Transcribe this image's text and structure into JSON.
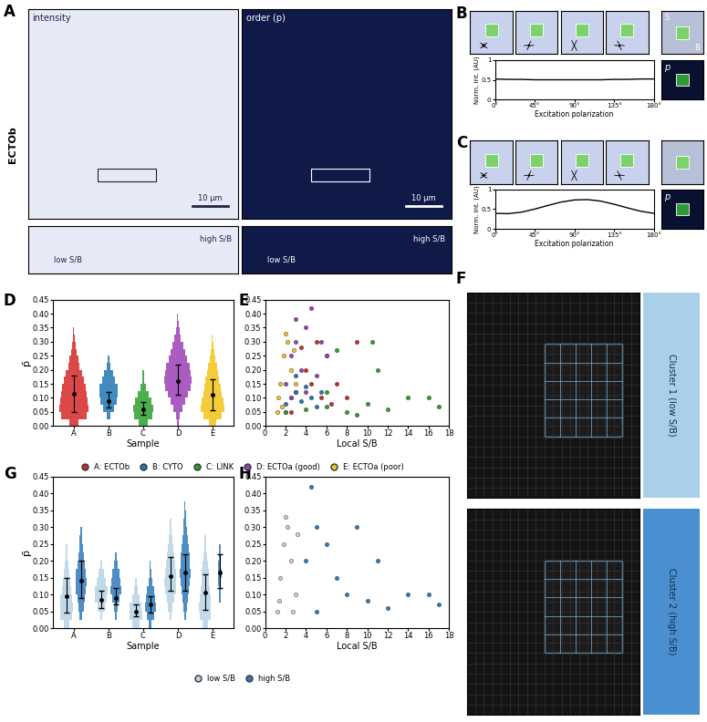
{
  "images": {
    "A": {
      "panel_label": "A",
      "row_label": "ECTOb",
      "intensity_title": "intensity",
      "order_title": "order (p)",
      "scale_bar": "10 µm",
      "inset_labels": [
        "low S/B",
        "high S/B"
      ]
    },
    "B": {
      "panel_label": "B",
      "tile_labels": [
        "S",
        "B"
      ],
      "order_label": "p"
    },
    "C": {
      "panel_label": "C",
      "order_label": "p"
    },
    "F": {
      "panel_label": "F",
      "clusters": [
        "Cluster 1 (low S/B)",
        "Cluster 2 (high S/B)"
      ]
    }
  },
  "chart_data": [
    {
      "type": "line",
      "x": [
        0,
        15,
        30,
        45,
        60,
        75,
        90,
        105,
        120,
        135,
        150,
        165,
        180
      ],
      "values": [
        0.52,
        0.51,
        0.51,
        0.5,
        0.5,
        0.5,
        0.5,
        0.5,
        0.5,
        0.51,
        0.51,
        0.52,
        0.52
      ],
      "color": "#000000",
      "xlabel": "Excitation polarization",
      "ylabel": "Norm. int. (AU)",
      "xlim": [
        0,
        180
      ],
      "xticks": [
        {
          "value": 0,
          "label": "0°"
        },
        {
          "value": 45,
          "label": "45°"
        },
        {
          "value": 90,
          "label": "90°"
        },
        {
          "value": 135,
          "label": "135°"
        },
        {
          "value": 180,
          "label": "180°"
        }
      ],
      "ylim": [
        0,
        1
      ],
      "yticks": [
        0,
        0.5,
        1
      ]
    },
    {
      "type": "line",
      "x": [
        0,
        15,
        30,
        45,
        60,
        75,
        90,
        105,
        120,
        135,
        150,
        165,
        180
      ],
      "values": [
        0.39,
        0.383,
        0.42,
        0.498,
        0.59,
        0.676,
        0.729,
        0.737,
        0.698,
        0.62,
        0.529,
        0.444,
        0.391
      ],
      "color": "#000000",
      "xlabel": "Excitation polarization",
      "ylabel": "Norm. int. (AU)",
      "xlim": [
        0,
        180
      ],
      "xticks": [
        {
          "value": 0,
          "label": "0°"
        },
        {
          "value": 45,
          "label": "45°"
        },
        {
          "value": 90,
          "label": "90°"
        },
        {
          "value": 135,
          "label": "135°"
        },
        {
          "value": 180,
          "label": "180°"
        }
      ],
      "ylim": [
        0,
        1
      ],
      "yticks": [
        0,
        0.5,
        1
      ]
    },
    {
      "type": "swarm",
      "panel_label": "D",
      "xlabel": "Sample",
      "ylabel": "p̄",
      "categories": [
        "A",
        "B",
        "C",
        "D",
        "E"
      ],
      "colors": [
        "#d62728",
        "#1f77b4",
        "#2ca02c",
        "#9b3fb5",
        "#f2c318"
      ],
      "median": [
        0.115,
        0.09,
        0.06,
        0.16,
        0.11
      ],
      "q1": [
        0.05,
        0.065,
        0.04,
        0.11,
        0.055
      ],
      "q3": [
        0.18,
        0.12,
        0.085,
        0.22,
        0.165
      ],
      "density_bins": [
        0,
        0.025,
        0.05,
        0.075,
        0.1,
        0.125,
        0.15,
        0.175,
        0.2,
        0.225,
        0.25,
        0.275,
        0.3,
        0.325,
        0.35,
        0.375,
        0.4,
        0.425,
        0.45
      ],
      "density": [
        [
          0.3,
          0.9,
          1,
          0.95,
          0.9,
          0.8,
          0.7,
          0.55,
          0.4,
          0.3,
          0.2,
          0.12,
          0.06,
          0.03,
          0,
          0,
          0,
          0
        ],
        [
          0,
          0.15,
          0.35,
          0.55,
          0.65,
          0.6,
          0.45,
          0.3,
          0.15,
          0.05,
          0,
          0,
          0,
          0,
          0,
          0,
          0,
          0
        ],
        [
          0.3,
          0.65,
          0.7,
          0.55,
          0.35,
          0.18,
          0.08,
          0.04,
          0.02,
          0.02,
          0.01,
          0.01,
          0,
          0,
          0,
          0,
          0,
          0
        ],
        [
          0.05,
          0.15,
          0.3,
          0.5,
          0.7,
          0.85,
          0.95,
          0.9,
          0.8,
          0.65,
          0.5,
          0.35,
          0.22,
          0.12,
          0.06,
          0.03,
          0.02,
          0
        ],
        [
          0.25,
          0.6,
          0.8,
          0.75,
          0.65,
          0.55,
          0.47,
          0.38,
          0.3,
          0.2,
          0.13,
          0.07,
          0.03,
          0.02,
          0,
          0,
          0,
          0
        ]
      ],
      "ylim": [
        0,
        0.45
      ],
      "yticks": [
        {
          "value": 0,
          "label": "0.00"
        },
        {
          "value": 0.05,
          "label": "0.05"
        },
        {
          "value": 0.1,
          "label": "0.10"
        },
        {
          "value": 0.15,
          "label": "0.15"
        },
        {
          "value": 0.2,
          "label": "0.20"
        },
        {
          "value": 0.25,
          "label": "0.25"
        },
        {
          "value": 0.3,
          "label": "0.30"
        },
        {
          "value": 0.35,
          "label": "0.35"
        },
        {
          "value": 0.4,
          "label": "0.40"
        },
        {
          "value": 0.45,
          "label": "0.45"
        }
      ]
    },
    {
      "type": "scatter",
      "panel_label": "E",
      "xlabel": "Local S/B",
      "marker": "o",
      "legend": "lower center",
      "series": [
        {
          "name": "A: ECTOb",
          "color": "#d62728",
          "x": [
            3,
            4,
            5,
            6,
            2.5,
            7,
            8,
            9,
            5.5,
            3.5,
            4.5,
            6.5
          ],
          "values": [
            0.12,
            0.2,
            0.3,
            0.25,
            0.05,
            0.15,
            0.1,
            0.3,
            0.1,
            0.28,
            0.15,
            0.08
          ]
        },
        {
          "name": "B: CYTO",
          "color": "#1f77b4",
          "x": [
            2,
            2.5,
            3,
            3.5,
            4,
            4.5,
            5,
            5.5,
            3,
            2
          ],
          "values": [
            0.08,
            0.1,
            0.12,
            0.09,
            0.14,
            0.1,
            0.07,
            0.12,
            0.18,
            0.05
          ]
        },
        {
          "name": "C: LINK",
          "color": "#2ca02c",
          "x": [
            2,
            4,
            6,
            8,
            10,
            12,
            14,
            16,
            17,
            9,
            6,
            11,
            7,
            10.5
          ],
          "values": [
            0.05,
            0.06,
            0.07,
            0.05,
            0.08,
            0.06,
            0.1,
            0.1,
            0.07,
            0.04,
            0.12,
            0.2,
            0.27,
            0.3
          ]
        },
        {
          "name": "D: ECTOa (good)",
          "color": "#9b3fb5",
          "x": [
            2,
            2.5,
            3,
            3.5,
            4,
            4.5,
            5,
            5.5,
            6,
            2.5,
            3,
            4
          ],
          "values": [
            0.15,
            0.25,
            0.3,
            0.2,
            0.35,
            0.42,
            0.18,
            0.3,
            0.25,
            0.1,
            0.38,
            0.12
          ]
        },
        {
          "name": "E: ECTOa (poor)",
          "color": "#f2c318",
          "x": [
            1.2,
            1.5,
            1.8,
            2,
            2.5,
            1.3,
            2.2,
            3,
            2.8,
            1.6
          ],
          "values": [
            0.05,
            0.15,
            0.25,
            0.33,
            0.2,
            0.1,
            0.3,
            0.15,
            0.27,
            0.07
          ]
        }
      ],
      "xlim": [
        0,
        18
      ],
      "xticks": [
        0,
        2,
        4,
        6,
        8,
        10,
        12,
        14,
        16,
        18
      ],
      "ylim": [
        0,
        0.45
      ],
      "yticks": [
        {
          "value": 0,
          "label": "0.00"
        },
        {
          "value": 0.05,
          "label": "0.05"
        },
        {
          "value": 0.1,
          "label": "0.10"
        },
        {
          "value": 0.15,
          "label": "0.15"
        },
        {
          "value": 0.2,
          "label": "0.20"
        },
        {
          "value": 0.25,
          "label": "0.25"
        },
        {
          "value": 0.3,
          "label": "0.30"
        },
        {
          "value": 0.35,
          "label": "0.35"
        },
        {
          "value": 0.4,
          "label": "0.40"
        },
        {
          "value": 0.45,
          "label": "0.45"
        }
      ]
    },
    {
      "type": "swarm",
      "panel_label": "G",
      "xlabel": "Sample",
      "ylabel": "p̄",
      "categories": [
        "A",
        "B",
        "C",
        "D",
        "E"
      ],
      "density_bins": [
        0,
        0.025,
        0.05,
        0.075,
        0.1,
        0.125,
        0.15,
        0.175,
        0.2,
        0.225,
        0.25,
        0.275,
        0.3,
        0.325,
        0.35,
        0.375,
        0.4,
        0.425,
        0.45
      ],
      "series": [
        {
          "name": "low S/B",
          "color": "#b7d3e6",
          "median": [
            0.095,
            0.085,
            0.05,
            0.155,
            0.105
          ],
          "q1": [
            0.045,
            0.06,
            0.035,
            0.11,
            0.055
          ],
          "q3": [
            0.15,
            0.11,
            0.07,
            0.21,
            0.16
          ],
          "density": [
            [
              0.4,
              0.9,
              1,
              0.9,
              0.75,
              0.6,
              0.45,
              0.3,
              0.2,
              0.1,
              0.05,
              0.02,
              0,
              0,
              0,
              0,
              0,
              0
            ],
            [
              0,
              0.2,
              0.6,
              0.9,
              1,
              0.7,
              0.4,
              0.2,
              0.05,
              0,
              0,
              0,
              0,
              0,
              0,
              0,
              0,
              0
            ],
            [
              0.5,
              1,
              0.9,
              0.5,
              0.25,
              0.1,
              0.04,
              0.02,
              0,
              0,
              0,
              0,
              0,
              0,
              0,
              0,
              0,
              0
            ],
            [
              0.05,
              0.15,
              0.35,
              0.6,
              0.8,
              0.9,
              0.85,
              0.7,
              0.55,
              0.4,
              0.28,
              0.15,
              0.08,
              0.03,
              0.01,
              0,
              0,
              0
            ],
            [
              0.4,
              0.8,
              0.9,
              0.8,
              0.7,
              0.6,
              0.5,
              0.4,
              0.3,
              0.2,
              0.12,
              0.05,
              0.02,
              0,
              0,
              0,
              0,
              0
            ]
          ]
        },
        {
          "name": "high S/B",
          "color": "#2f7ab9",
          "median": [
            0.14,
            0.09,
            0.07,
            0.165,
            0.165
          ],
          "q1": [
            0.09,
            0.07,
            0.045,
            0.11,
            0.12
          ],
          "q3": [
            0.2,
            0.12,
            0.095,
            0.22,
            0.22
          ],
          "density": [
            [
              0.05,
              0.2,
              0.4,
              0.6,
              0.75,
              0.8,
              0.75,
              0.6,
              0.45,
              0.3,
              0.2,
              0.1,
              0.05,
              0.02,
              0,
              0,
              0,
              0
            ],
            [
              0,
              0.1,
              0.3,
              0.6,
              0.8,
              0.7,
              0.5,
              0.3,
              0.1,
              0.02,
              0,
              0,
              0,
              0,
              0,
              0,
              0,
              0
            ],
            [
              0.2,
              0.6,
              0.8,
              0.7,
              0.5,
              0.3,
              0.15,
              0.08,
              0.04,
              0.03,
              0.02,
              0.01,
              0,
              0,
              0,
              0,
              0,
              0
            ],
            [
              0.03,
              0.1,
              0.25,
              0.45,
              0.6,
              0.75,
              0.8,
              0.75,
              0.65,
              0.55,
              0.45,
              0.32,
              0.2,
              0.12,
              0.06,
              0.03,
              0.02,
              0
            ],
            [
              0,
              0,
              0.05,
              0.1,
              0.15,
              0.2,
              0.25,
              0.2,
              0.15,
              0.1,
              0.05,
              0.02,
              0,
              0,
              0,
              0,
              0,
              0
            ]
          ]
        }
      ],
      "ylim": [
        0,
        0.45
      ],
      "yticks": [
        {
          "value": 0,
          "label": "0.00"
        },
        {
          "value": 0.05,
          "label": "0.05"
        },
        {
          "value": 0.1,
          "label": "0.10"
        },
        {
          "value": 0.15,
          "label": "0.15"
        },
        {
          "value": 0.2,
          "label": "0.20"
        },
        {
          "value": 0.25,
          "label": "0.25"
        },
        {
          "value": 0.3,
          "label": "0.30"
        },
        {
          "value": 0.35,
          "label": "0.35"
        },
        {
          "value": 0.4,
          "label": "0.40"
        },
        {
          "value": 0.45,
          "label": "0.45"
        }
      ]
    },
    {
      "type": "scatter",
      "panel_label": "H",
      "xlabel": "Local S/B",
      "marker": "o",
      "legend": "lower center",
      "series": [
        {
          "name": "low S/B",
          "color": "#b7d3e6",
          "x": [
            1.2,
            1.5,
            1.8,
            2,
            2.5,
            3,
            2.2,
            3.2,
            1.4,
            2.7
          ],
          "values": [
            0.05,
            0.15,
            0.25,
            0.33,
            0.2,
            0.1,
            0.3,
            0.28,
            0.08,
            0.05
          ]
        },
        {
          "name": "high S/B",
          "color": "#2f7ab9",
          "x": [
            4,
            5,
            4.5,
            6,
            8,
            10,
            12,
            14,
            16,
            17,
            9,
            7,
            11,
            5
          ],
          "values": [
            0.2,
            0.3,
            0.42,
            0.25,
            0.1,
            0.08,
            0.06,
            0.1,
            0.1,
            0.07,
            0.3,
            0.15,
            0.2,
            0.05
          ]
        }
      ],
      "xlim": [
        0,
        18
      ],
      "xticks": [
        0,
        2,
        4,
        6,
        8,
        10,
        12,
        14,
        16,
        18
      ],
      "ylim": [
        0,
        0.45
      ],
      "yticks": [
        {
          "value": 0,
          "label": "0.00"
        },
        {
          "value": 0.05,
          "label": "0.05"
        },
        {
          "value": 0.1,
          "label": "0.10"
        },
        {
          "value": 0.15,
          "label": "0.15"
        },
        {
          "value": 0.2,
          "label": "0.20"
        },
        {
          "value": 0.25,
          "label": "0.25"
        },
        {
          "value": 0.3,
          "label": "0.30"
        },
        {
          "value": 0.35,
          "label": "0.35"
        },
        {
          "value": 0.4,
          "label": "0.40"
        },
        {
          "value": 0.45,
          "label": "0.45"
        }
      ]
    }
  ]
}
